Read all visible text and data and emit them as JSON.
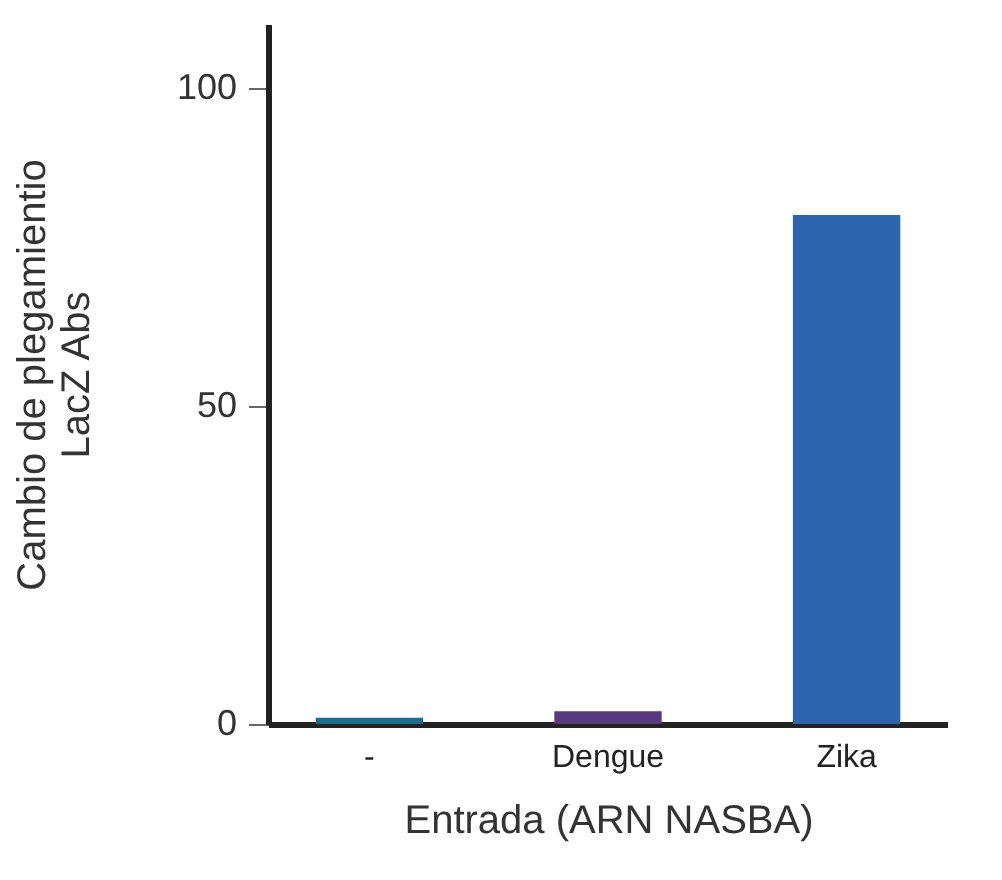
{
  "chart_data": {
    "type": "bar",
    "xlabel": "Entrada (ARN NASBA)",
    "ylabel": "Cambio de plegamientio\nLacZ Abs",
    "categories": [
      "-",
      "Dengue",
      "Zika"
    ],
    "values": [
      1,
      2,
      80
    ],
    "colors": [
      "#1a6f8f",
      "#553a80",
      "#2c65ad"
    ],
    "ylim": [
      0,
      110
    ],
    "yticks": [
      0,
      50,
      100
    ]
  }
}
